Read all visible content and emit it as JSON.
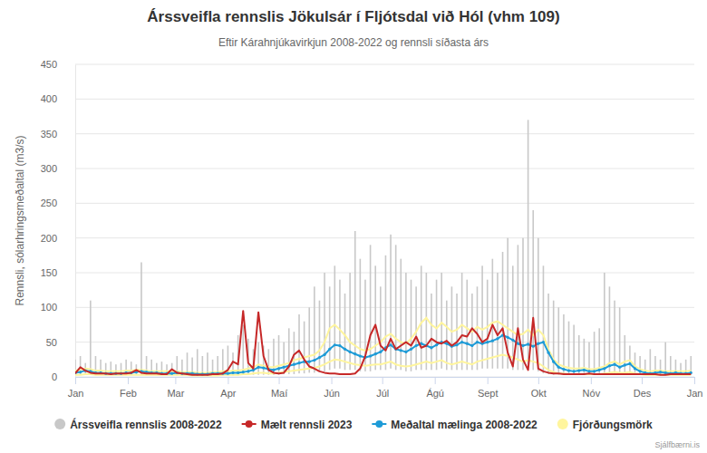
{
  "chart_data": {
    "type": "line",
    "title": "Árssveifla rennslis Jökulsár í Fljótsdal við Hól (vhm 109)",
    "subtitle": "Eftir Kárahnjúkavirkjun 2008-2022 og rennsli síðasta árs",
    "y_label": "Rennsli, sólarhringsmeðaltal (m3/s)",
    "credits": "Sjálfbærni.is",
    "legend": "bottom",
    "grid": true,
    "xlim": [
      0,
      365
    ],
    "xticks": [
      {
        "value": 0,
        "label": "Jan"
      },
      {
        "value": 31,
        "label": "Feb"
      },
      {
        "value": 59,
        "label": "Mar"
      },
      {
        "value": 90,
        "label": "Apr"
      },
      {
        "value": 120,
        "label": "Maí"
      },
      {
        "value": 151,
        "label": "Jún"
      },
      {
        "value": 181,
        "label": "Júl"
      },
      {
        "value": 212,
        "label": "Ágú"
      },
      {
        "value": 243,
        "label": "Sept"
      },
      {
        "value": 273,
        "label": "Okt"
      },
      {
        "value": 304,
        "label": "Nóv"
      },
      {
        "value": 334,
        "label": "Des"
      },
      {
        "value": 365,
        "label": "Jan"
      }
    ],
    "ylim": [
      0,
      450
    ],
    "yticks": [
      0,
      50,
      100,
      150,
      200,
      250,
      300,
      350,
      400,
      450
    ],
    "x": [
      0,
      3,
      6,
      9,
      12,
      15,
      18,
      21,
      24,
      27,
      30,
      33,
      36,
      39,
      42,
      45,
      48,
      51,
      54,
      57,
      60,
      63,
      66,
      69,
      72,
      75,
      78,
      81,
      84,
      87,
      90,
      93,
      96,
      99,
      102,
      105,
      108,
      111,
      114,
      117,
      120,
      123,
      126,
      129,
      132,
      135,
      138,
      141,
      144,
      147,
      150,
      153,
      156,
      159,
      162,
      165,
      168,
      171,
      174,
      177,
      180,
      183,
      186,
      189,
      192,
      195,
      198,
      201,
      204,
      207,
      210,
      213,
      216,
      219,
      222,
      225,
      228,
      231,
      234,
      237,
      240,
      243,
      246,
      249,
      252,
      255,
      258,
      261,
      264,
      267,
      270,
      273,
      276,
      279,
      282,
      285,
      288,
      291,
      294,
      297,
      300,
      303,
      306,
      309,
      312,
      315,
      318,
      321,
      324,
      327,
      330,
      333,
      336,
      339,
      342,
      345,
      348,
      351,
      354,
      357,
      360,
      363
    ],
    "series": [
      {
        "name": "Árssveifla rennslis 2008-2022",
        "type": "bar",
        "color": "#c8c8c8",
        "values": [
          25,
          30,
          20,
          110,
          30,
          25,
          20,
          22,
          18,
          20,
          25,
          22,
          18,
          165,
          30,
          25,
          20,
          22,
          18,
          20,
          30,
          25,
          35,
          28,
          40,
          30,
          35,
          25,
          30,
          40,
          45,
          35,
          60,
          75,
          55,
          40,
          50,
          45,
          40,
          55,
          60,
          50,
          70,
          65,
          90,
          80,
          100,
          130,
          110,
          150,
          130,
          160,
          140,
          120,
          150,
          210,
          170,
          140,
          190,
          160,
          130,
          175,
          205,
          190,
          170,
          150,
          140,
          130,
          160,
          150,
          120,
          140,
          150,
          110,
          130,
          120,
          150,
          140,
          120,
          130,
          160,
          140,
          170,
          150,
          180,
          200,
          160,
          190,
          200,
          370,
          240,
          200,
          160,
          120,
          110,
          100,
          90,
          80,
          75,
          60,
          55,
          50,
          65,
          70,
          150,
          130,
          110,
          100,
          60,
          45,
          35,
          30,
          25,
          40,
          30,
          25,
          50,
          30,
          25,
          20,
          25,
          30
        ],
        "low": [
          3,
          3,
          3,
          3,
          3,
          3,
          3,
          3,
          3,
          3,
          3,
          3,
          3,
          3,
          3,
          3,
          3,
          3,
          3,
          3,
          2,
          2,
          2,
          2,
          2,
          2,
          2,
          2,
          2,
          2,
          2,
          2,
          2,
          3,
          3,
          3,
          3,
          3,
          3,
          3,
          3,
          4,
          4,
          4,
          5,
          5,
          6,
          6,
          7,
          8,
          10,
          12,
          12,
          10,
          10,
          10,
          8,
          8,
          8,
          10,
          10,
          10,
          12,
          10,
          10,
          8,
          8,
          10,
          10,
          10,
          10,
          10,
          12,
          10,
          10,
          10,
          10,
          10,
          10,
          10,
          12,
          12,
          12,
          12,
          12,
          12,
          10,
          10,
          10,
          10,
          10,
          8,
          5,
          4,
          3,
          3,
          3,
          3,
          3,
          3,
          3,
          3,
          3,
          3,
          3,
          3,
          3,
          3,
          3,
          3,
          3,
          3,
          3,
          3,
          3,
          3,
          3,
          3,
          3,
          3,
          3,
          3
        ]
      },
      {
        "name": "Mælt rennsli 2023",
        "type": "line",
        "color": "#c62828",
        "values": [
          5,
          14,
          9,
          6,
          5,
          5,
          5,
          4,
          5,
          5,
          5,
          6,
          10,
          6,
          5,
          5,
          5,
          4,
          4,
          11,
          6,
          5,
          4,
          3,
          3,
          3,
          3,
          4,
          4,
          5,
          10,
          22,
          18,
          95,
          20,
          12,
          93,
          30,
          10,
          6,
          5,
          6,
          15,
          32,
          38,
          25,
          15,
          12,
          8,
          6,
          5,
          5,
          4,
          4,
          4,
          5,
          12,
          30,
          60,
          75,
          45,
          38,
          55,
          40,
          45,
          50,
          45,
          58,
          42,
          45,
          55,
          50,
          48,
          52,
          45,
          50,
          60,
          58,
          70,
          62,
          50,
          55,
          75,
          60,
          70,
          35,
          15,
          70,
          25,
          10,
          85,
          12,
          8,
          6,
          5,
          5,
          4,
          4,
          4,
          4,
          4,
          5,
          4,
          4,
          4,
          4,
          4,
          4,
          4,
          4,
          4,
          4,
          4,
          4,
          4,
          3,
          3,
          4,
          4,
          4,
          4,
          4
        ]
      },
      {
        "name": "Meðaltal mælinga 2008-2022",
        "type": "line",
        "marker": "circle",
        "color": "#1e9bd7",
        "values": [
          6,
          7,
          9,
          8,
          6,
          6,
          5,
          5,
          5,
          5,
          6,
          6,
          7,
          8,
          7,
          6,
          6,
          5,
          5,
          5,
          6,
          5,
          5,
          5,
          4,
          4,
          4,
          5,
          5,
          5,
          5,
          6,
          6,
          7,
          8,
          10,
          14,
          13,
          11,
          10,
          12,
          14,
          16,
          18,
          20,
          22,
          22,
          24,
          28,
          32,
          40,
          46,
          45,
          40,
          36,
          33,
          30,
          28,
          30,
          33,
          36,
          42,
          46,
          40,
          38,
          36,
          40,
          45,
          48,
          45,
          42,
          46,
          50,
          48,
          44,
          46,
          50,
          48,
          45,
          50,
          48,
          50,
          52,
          55,
          60,
          57,
          53,
          48,
          45,
          47,
          44,
          48,
          50,
          35,
          22,
          14,
          11,
          9,
          8,
          9,
          10,
          8,
          8,
          10,
          12,
          16,
          18,
          14,
          17,
          19,
          12,
          8,
          6,
          5,
          6,
          7,
          6,
          5,
          6,
          5,
          5,
          6
        ]
      },
      {
        "name": "Fjórðungsmörk",
        "type": "band_lines",
        "color": "#fff59d",
        "values": [
          9,
          10,
          12,
          11,
          9,
          9,
          8,
          8,
          8,
          8,
          9,
          9,
          10,
          10,
          9,
          8,
          8,
          8,
          8,
          8,
          8,
          7,
          7,
          7,
          6,
          6,
          6,
          7,
          7,
          8,
          8,
          9,
          9,
          10,
          12,
          14,
          18,
          16,
          14,
          14,
          16,
          18,
          20,
          24,
          26,
          28,
          30,
          32,
          38,
          50,
          70,
          75,
          68,
          60,
          50,
          45,
          40,
          38,
          40,
          45,
          50,
          58,
          62,
          55,
          50,
          48,
          55,
          65,
          78,
          85,
          75,
          70,
          78,
          72,
          65,
          68,
          75,
          70,
          65,
          72,
          68,
          72,
          78,
          80,
          75,
          70,
          65,
          60,
          62,
          68,
          60,
          68,
          60,
          40,
          25,
          18,
          15,
          13,
          12,
          12,
          13,
          11,
          11,
          13,
          15,
          20,
          22,
          18,
          22,
          24,
          15,
          11,
          9,
          8,
          9,
          9,
          8,
          8,
          8,
          8,
          8,
          9
        ],
        "low": [
          3,
          3,
          4,
          4,
          3,
          3,
          3,
          3,
          3,
          3,
          3,
          3,
          3,
          3,
          3,
          3,
          3,
          3,
          3,
          3,
          3,
          3,
          3,
          2,
          2,
          2,
          2,
          2,
          2,
          3,
          3,
          3,
          3,
          4,
          4,
          5,
          6,
          6,
          5,
          5,
          6,
          7,
          8,
          9,
          10,
          11,
          12,
          13,
          15,
          18,
          22,
          25,
          24,
          22,
          20,
          18,
          17,
          16,
          17,
          18,
          18,
          20,
          22,
          18,
          16,
          15,
          16,
          18,
          20,
          22,
          20,
          22,
          24,
          20,
          18,
          20,
          22,
          20,
          18,
          22,
          24,
          26,
          28,
          30,
          32,
          30,
          28,
          25,
          22,
          24,
          22,
          20,
          15,
          10,
          7,
          5,
          5,
          4,
          4,
          4,
          4,
          4,
          4,
          4,
          5,
          6,
          7,
          6,
          6,
          7,
          5,
          4,
          3,
          3,
          3,
          3,
          3,
          3,
          3,
          3,
          3,
          3
        ]
      }
    ]
  }
}
